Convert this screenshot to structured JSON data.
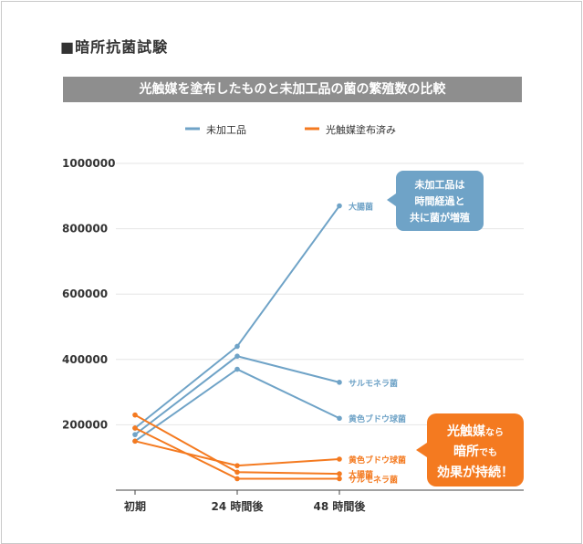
{
  "section_title": "■暗所抗菌試験",
  "banner_title": "光触媒を塗布したものと未加工品の菌の繁殖数の比較",
  "colors": {
    "untreated": "#6fa3c7",
    "treated": "#f47a20",
    "grid": "#e6e6e6",
    "axis_text": "#333333"
  },
  "callout_untreated": {
    "lines": [
      "未加工品は",
      "時間経過と",
      "共に菌が増殖"
    ]
  },
  "callout_treated": {
    "line1_strong": "光触媒",
    "line1_small": "なら",
    "line2_strong": "暗所",
    "line2_small": "でも",
    "line3": "効果が持続！"
  },
  "chart_data": {
    "type": "line",
    "categories": [
      "初期",
      "24 時間後",
      "48 時間後"
    ],
    "ylim": [
      0,
      1000000
    ],
    "yticks": [
      "1000000",
      "800000",
      "600000",
      "400000",
      "200000"
    ],
    "ytick_values": [
      1000000,
      800000,
      600000,
      400000,
      200000
    ],
    "legend": [
      "未加工品",
      "光触媒塗布済み"
    ],
    "legend_position": "top",
    "grid": true,
    "series": [
      {
        "group": "untreated",
        "label": "大腸菌",
        "values": [
          190000,
          440000,
          870000
        ]
      },
      {
        "group": "untreated",
        "label": "サルモネラ菌",
        "values": [
          170000,
          410000,
          330000
        ]
      },
      {
        "group": "untreated",
        "label": "黄色ブドウ球菌",
        "values": [
          150000,
          370000,
          220000
        ]
      },
      {
        "group": "treated",
        "label": "黄色ブドウ球菌",
        "values": [
          150000,
          75000,
          95000
        ]
      },
      {
        "group": "treated",
        "label": "大腸菌",
        "values": [
          230000,
          55000,
          50000
        ]
      },
      {
        "group": "treated",
        "label": "サルモネラ菌",
        "values": [
          190000,
          35000,
          35000
        ]
      }
    ]
  }
}
